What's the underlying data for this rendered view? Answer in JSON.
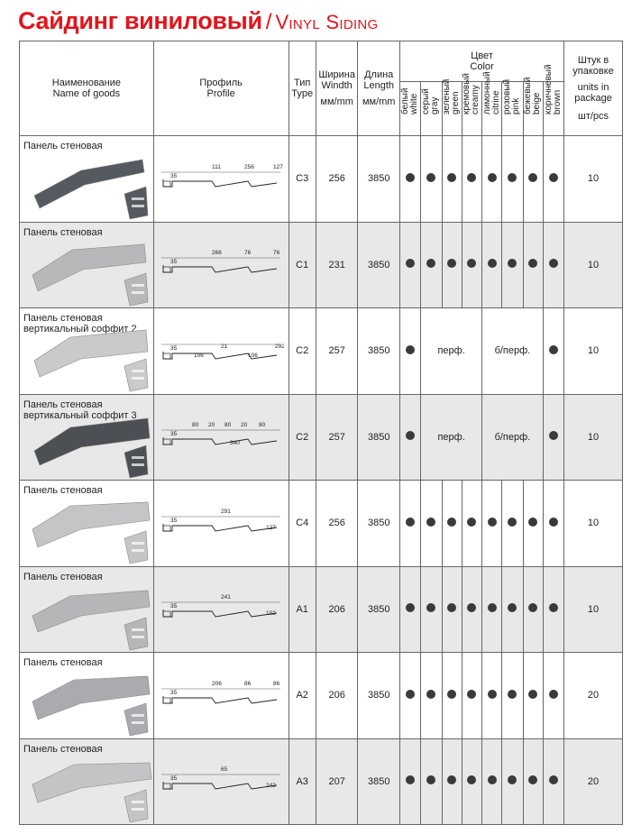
{
  "title": {
    "ru": "Сайдинг виниловый",
    "slash": "/",
    "en": "Vinyl Siding"
  },
  "headers": {
    "name": [
      "Наименование",
      "Name of goods"
    ],
    "profile": [
      "Профиль",
      "Profile"
    ],
    "type": [
      "Тип",
      "Type"
    ],
    "width": [
      "Ширина",
      "Windth",
      "мм/mm"
    ],
    "length": [
      "Длина",
      "Length",
      "мм/mm"
    ],
    "color": [
      "Цвет",
      "Color"
    ],
    "units": [
      "Штук в",
      "упаковке",
      "units in",
      "package",
      "шт/pcs"
    ],
    "colors": [
      [
        "белый",
        "white"
      ],
      [
        "серый",
        "gray"
      ],
      [
        "зеленый",
        "green"
      ],
      [
        "кремовый",
        "creamy"
      ],
      [
        "лимонный",
        "citrine"
      ],
      [
        "розовый",
        "pink"
      ],
      [
        "бежевый",
        "beige"
      ],
      [
        "коричневый",
        "brown"
      ]
    ]
  },
  "rows": [
    {
      "name": [
        "Панель стеновая"
      ],
      "panel_color": "#555a60",
      "profile_dims": [
        "35",
        "111",
        "256",
        "127"
      ],
      "type": "C3",
      "width": "256",
      "length": "3850",
      "dots": [
        1,
        1,
        1,
        1,
        1,
        1,
        1,
        1
      ],
      "perf": null,
      "units": "10"
    },
    {
      "name": [
        "Панель стеновая"
      ],
      "panel_color": "#b6b8ba",
      "profile_dims": [
        "35",
        "266",
        "76",
        "76"
      ],
      "type": "C1",
      "width": "231",
      "length": "3850",
      "dots": [
        1,
        1,
        1,
        1,
        1,
        1,
        1,
        1
      ],
      "perf": null,
      "units": "10"
    },
    {
      "name": [
        "Панель стеновая",
        "вертикальный соффит 2"
      ],
      "panel_color": "#c9cacb",
      "profile_dims": [
        "35",
        "106",
        "21",
        "106",
        "292"
      ],
      "type": "C2",
      "width": "257",
      "length": "3850",
      "dots": [
        1,
        0,
        0,
        0,
        0,
        0,
        0,
        1
      ],
      "perf": [
        "перф.",
        "б/перф."
      ],
      "units": "10"
    },
    {
      "name": [
        "Панель стеновая",
        "вертикальный соффит 3"
      ],
      "panel_color": "#4c4f54",
      "profile_dims": [
        "35",
        "80",
        "20",
        "80",
        "20",
        "80",
        "340"
      ],
      "type": "C2",
      "width": "257",
      "length": "3850",
      "dots": [
        1,
        0,
        0,
        0,
        0,
        0,
        0,
        1
      ],
      "perf": [
        "перф.",
        "б/перф."
      ],
      "units": "10"
    },
    {
      "name": [
        "Панель стеновая"
      ],
      "panel_color": "#c4c5c7",
      "profile_dims": [
        "35",
        "291",
        "127"
      ],
      "type": "C4",
      "width": "256",
      "length": "3850",
      "dots": [
        1,
        1,
        1,
        1,
        1,
        1,
        1,
        1
      ],
      "perf": null,
      "units": "10"
    },
    {
      "name": [
        "Панель стеновая"
      ],
      "panel_color": "#b4b6b8",
      "profile_dims": [
        "35",
        "241",
        "102"
      ],
      "type": "A1",
      "width": "206",
      "length": "3850",
      "dots": [
        1,
        1,
        1,
        1,
        1,
        1,
        1,
        1
      ],
      "perf": null,
      "units": "10"
    },
    {
      "name": [
        "Панель стеновая"
      ],
      "panel_color": "#a9abae",
      "profile_dims": [
        "35",
        "206",
        "86",
        "86"
      ],
      "type": "A2",
      "width": "206",
      "length": "3850",
      "dots": [
        1,
        1,
        1,
        1,
        1,
        1,
        1,
        1
      ],
      "perf": null,
      "units": "20"
    },
    {
      "name": [
        "Панель стеновая"
      ],
      "panel_color": "#c3c4c6",
      "profile_dims": [
        "35",
        "65",
        "242"
      ],
      "type": "A3",
      "width": "207",
      "length": "3850",
      "dots": [
        1,
        1,
        1,
        1,
        1,
        1,
        1,
        1
      ],
      "perf": null,
      "units": "20"
    }
  ]
}
